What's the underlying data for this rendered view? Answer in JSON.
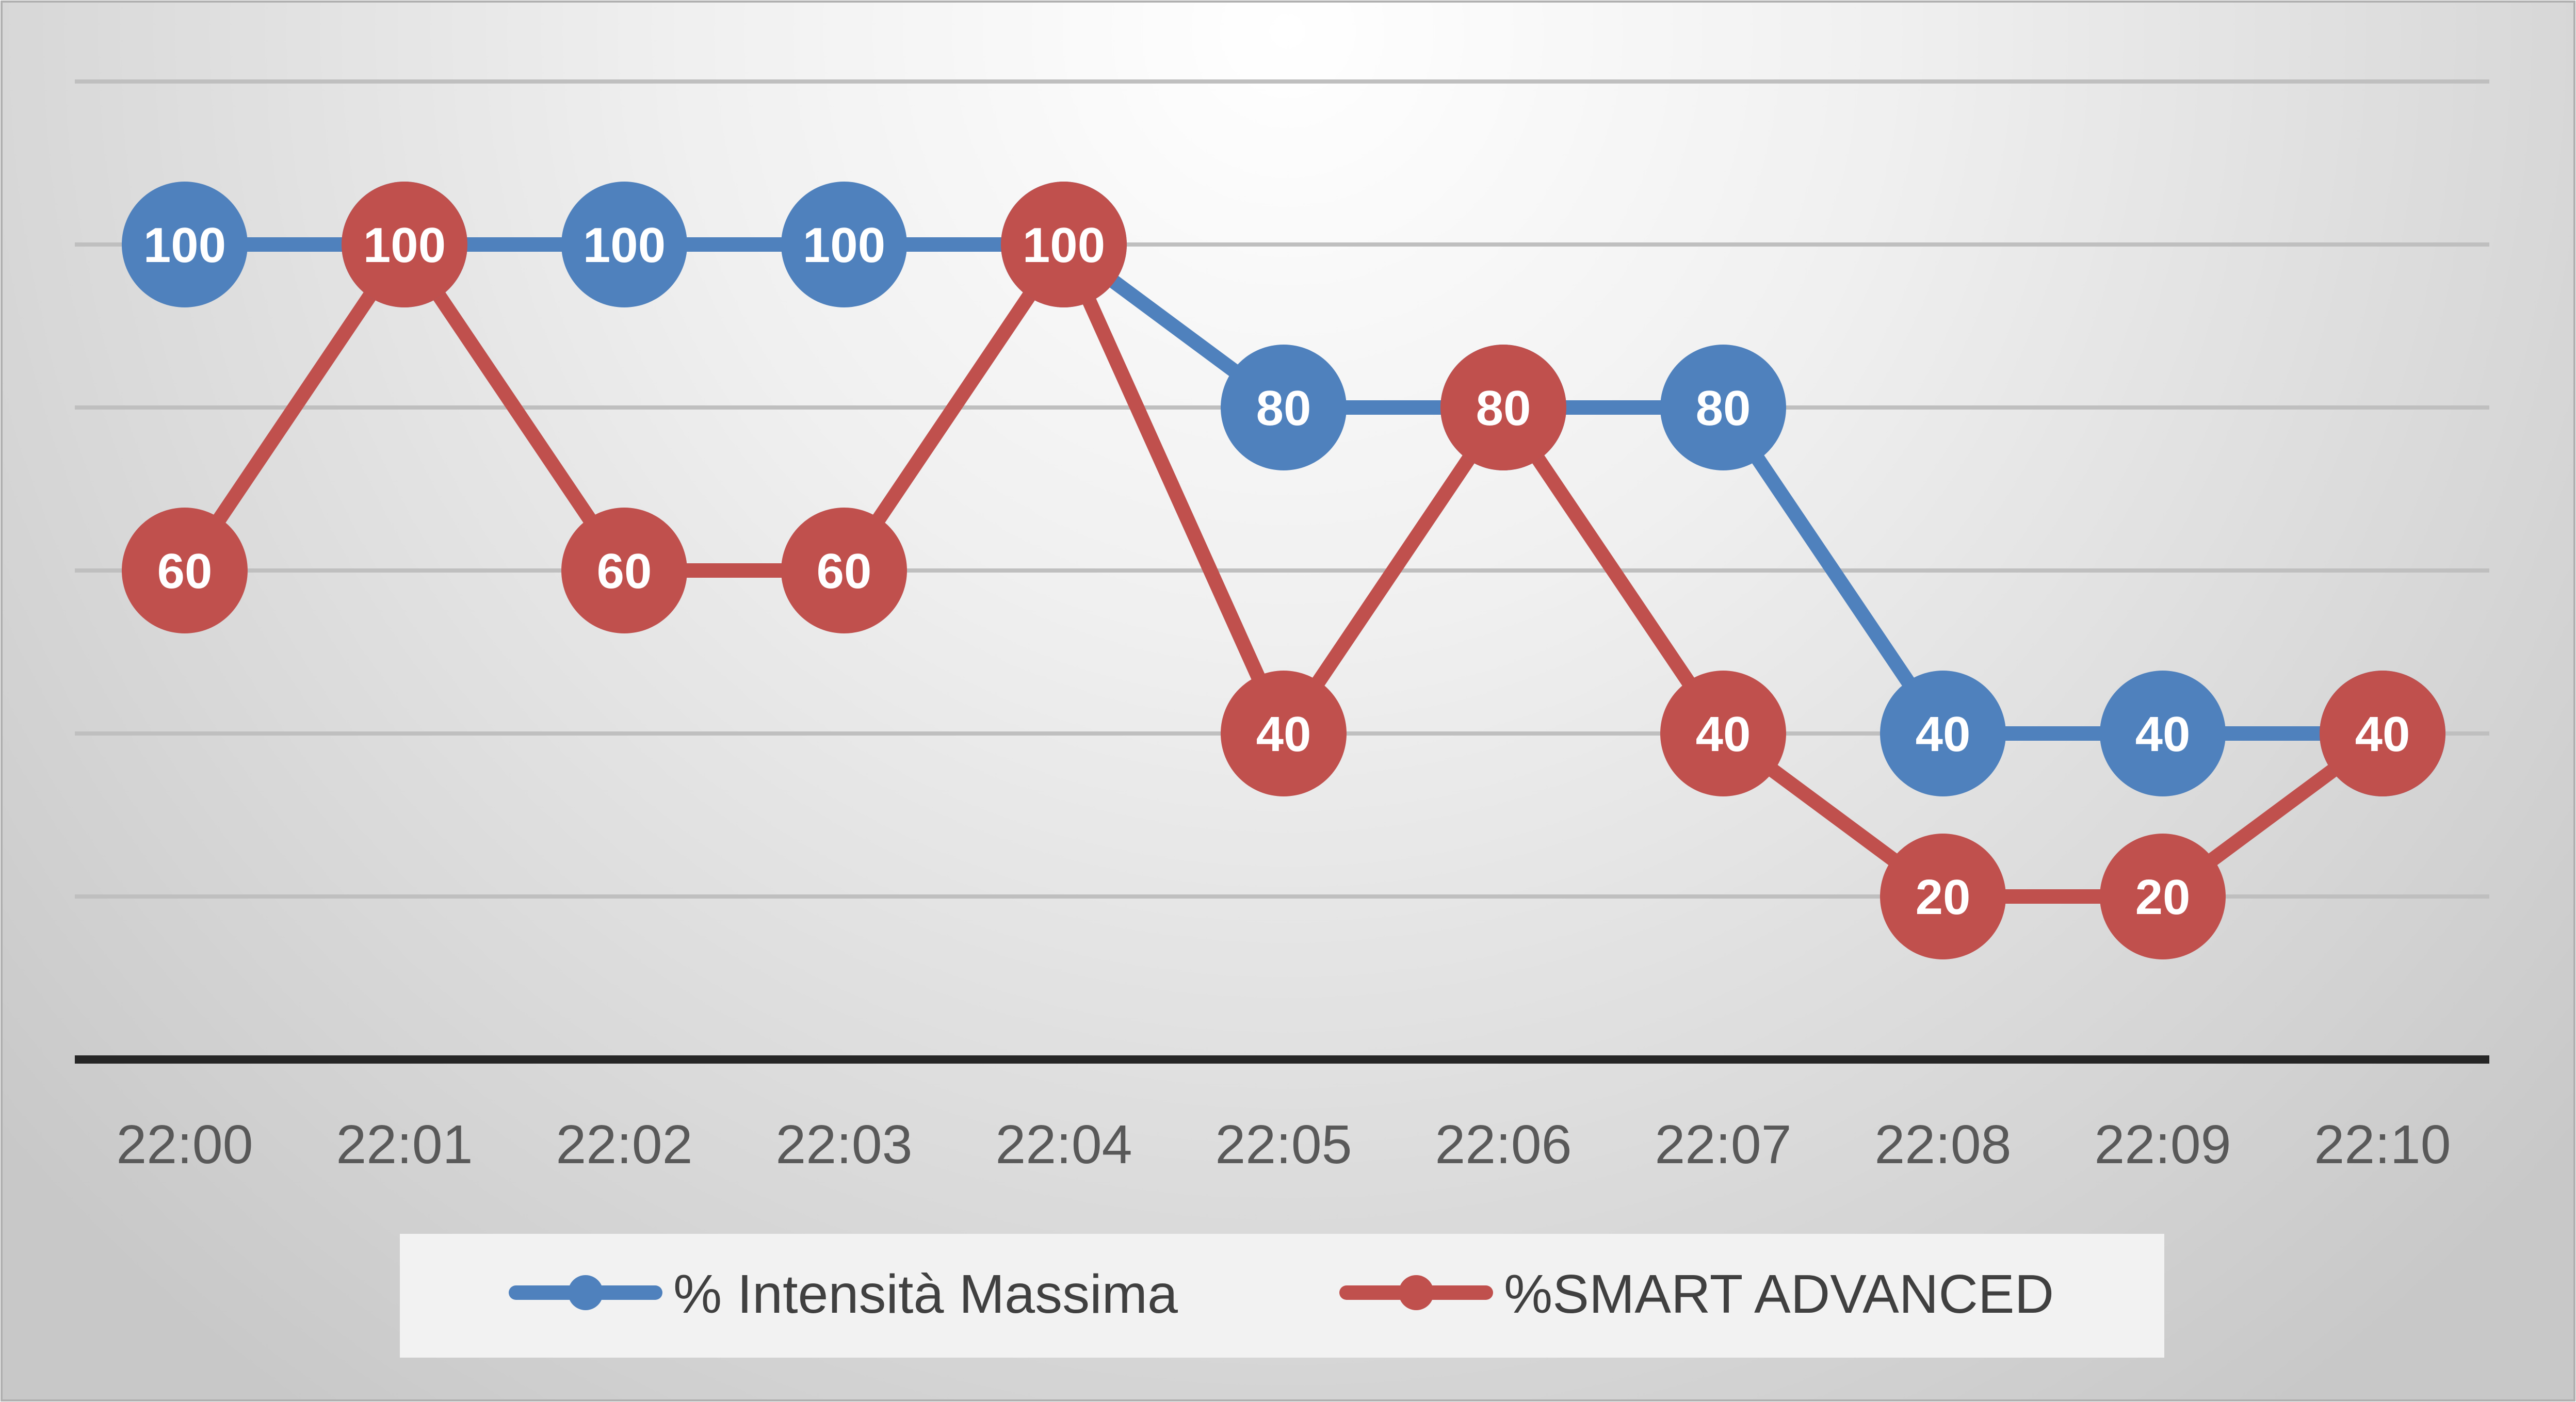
{
  "chart_data": {
    "type": "line",
    "title": "",
    "xlabel": "",
    "ylabel": "",
    "ylim": [
      0,
      120
    ],
    "y_gridlines": [
      20,
      40,
      60,
      80,
      100,
      120
    ],
    "y_tick_labels_shown": false,
    "categories": [
      "22:00",
      "22:01",
      "22:02",
      "22:03",
      "22:04",
      "22:05",
      "22:06",
      "22:07",
      "22:08",
      "22:09",
      "22:10"
    ],
    "series": [
      {
        "name": "% Intensità Massima",
        "color": "#4f81bd",
        "values": [
          100,
          100,
          100,
          100,
          100,
          80,
          80,
          80,
          40,
          40,
          40
        ],
        "data_labels": [
          "100",
          "100",
          "100",
          "100",
          "100",
          "80",
          "80",
          "80",
          "40",
          "40",
          "40"
        ]
      },
      {
        "name": "%SMART ADVANCED",
        "color": "#c0504d",
        "values": [
          60,
          100,
          60,
          60,
          100,
          40,
          80,
          40,
          20,
          20,
          40
        ],
        "data_labels": [
          "60",
          "100",
          "60",
          "60",
          "100",
          "40",
          "80",
          "40",
          "20",
          "20",
          "40"
        ]
      }
    ],
    "legend_position": "bottom",
    "colors": {
      "axis": "#262626",
      "gridline": "#bfbfbf",
      "legend_background": "#f2f2f2",
      "background_light": "#ffffff",
      "background_dark": "#c8c8c8"
    }
  }
}
